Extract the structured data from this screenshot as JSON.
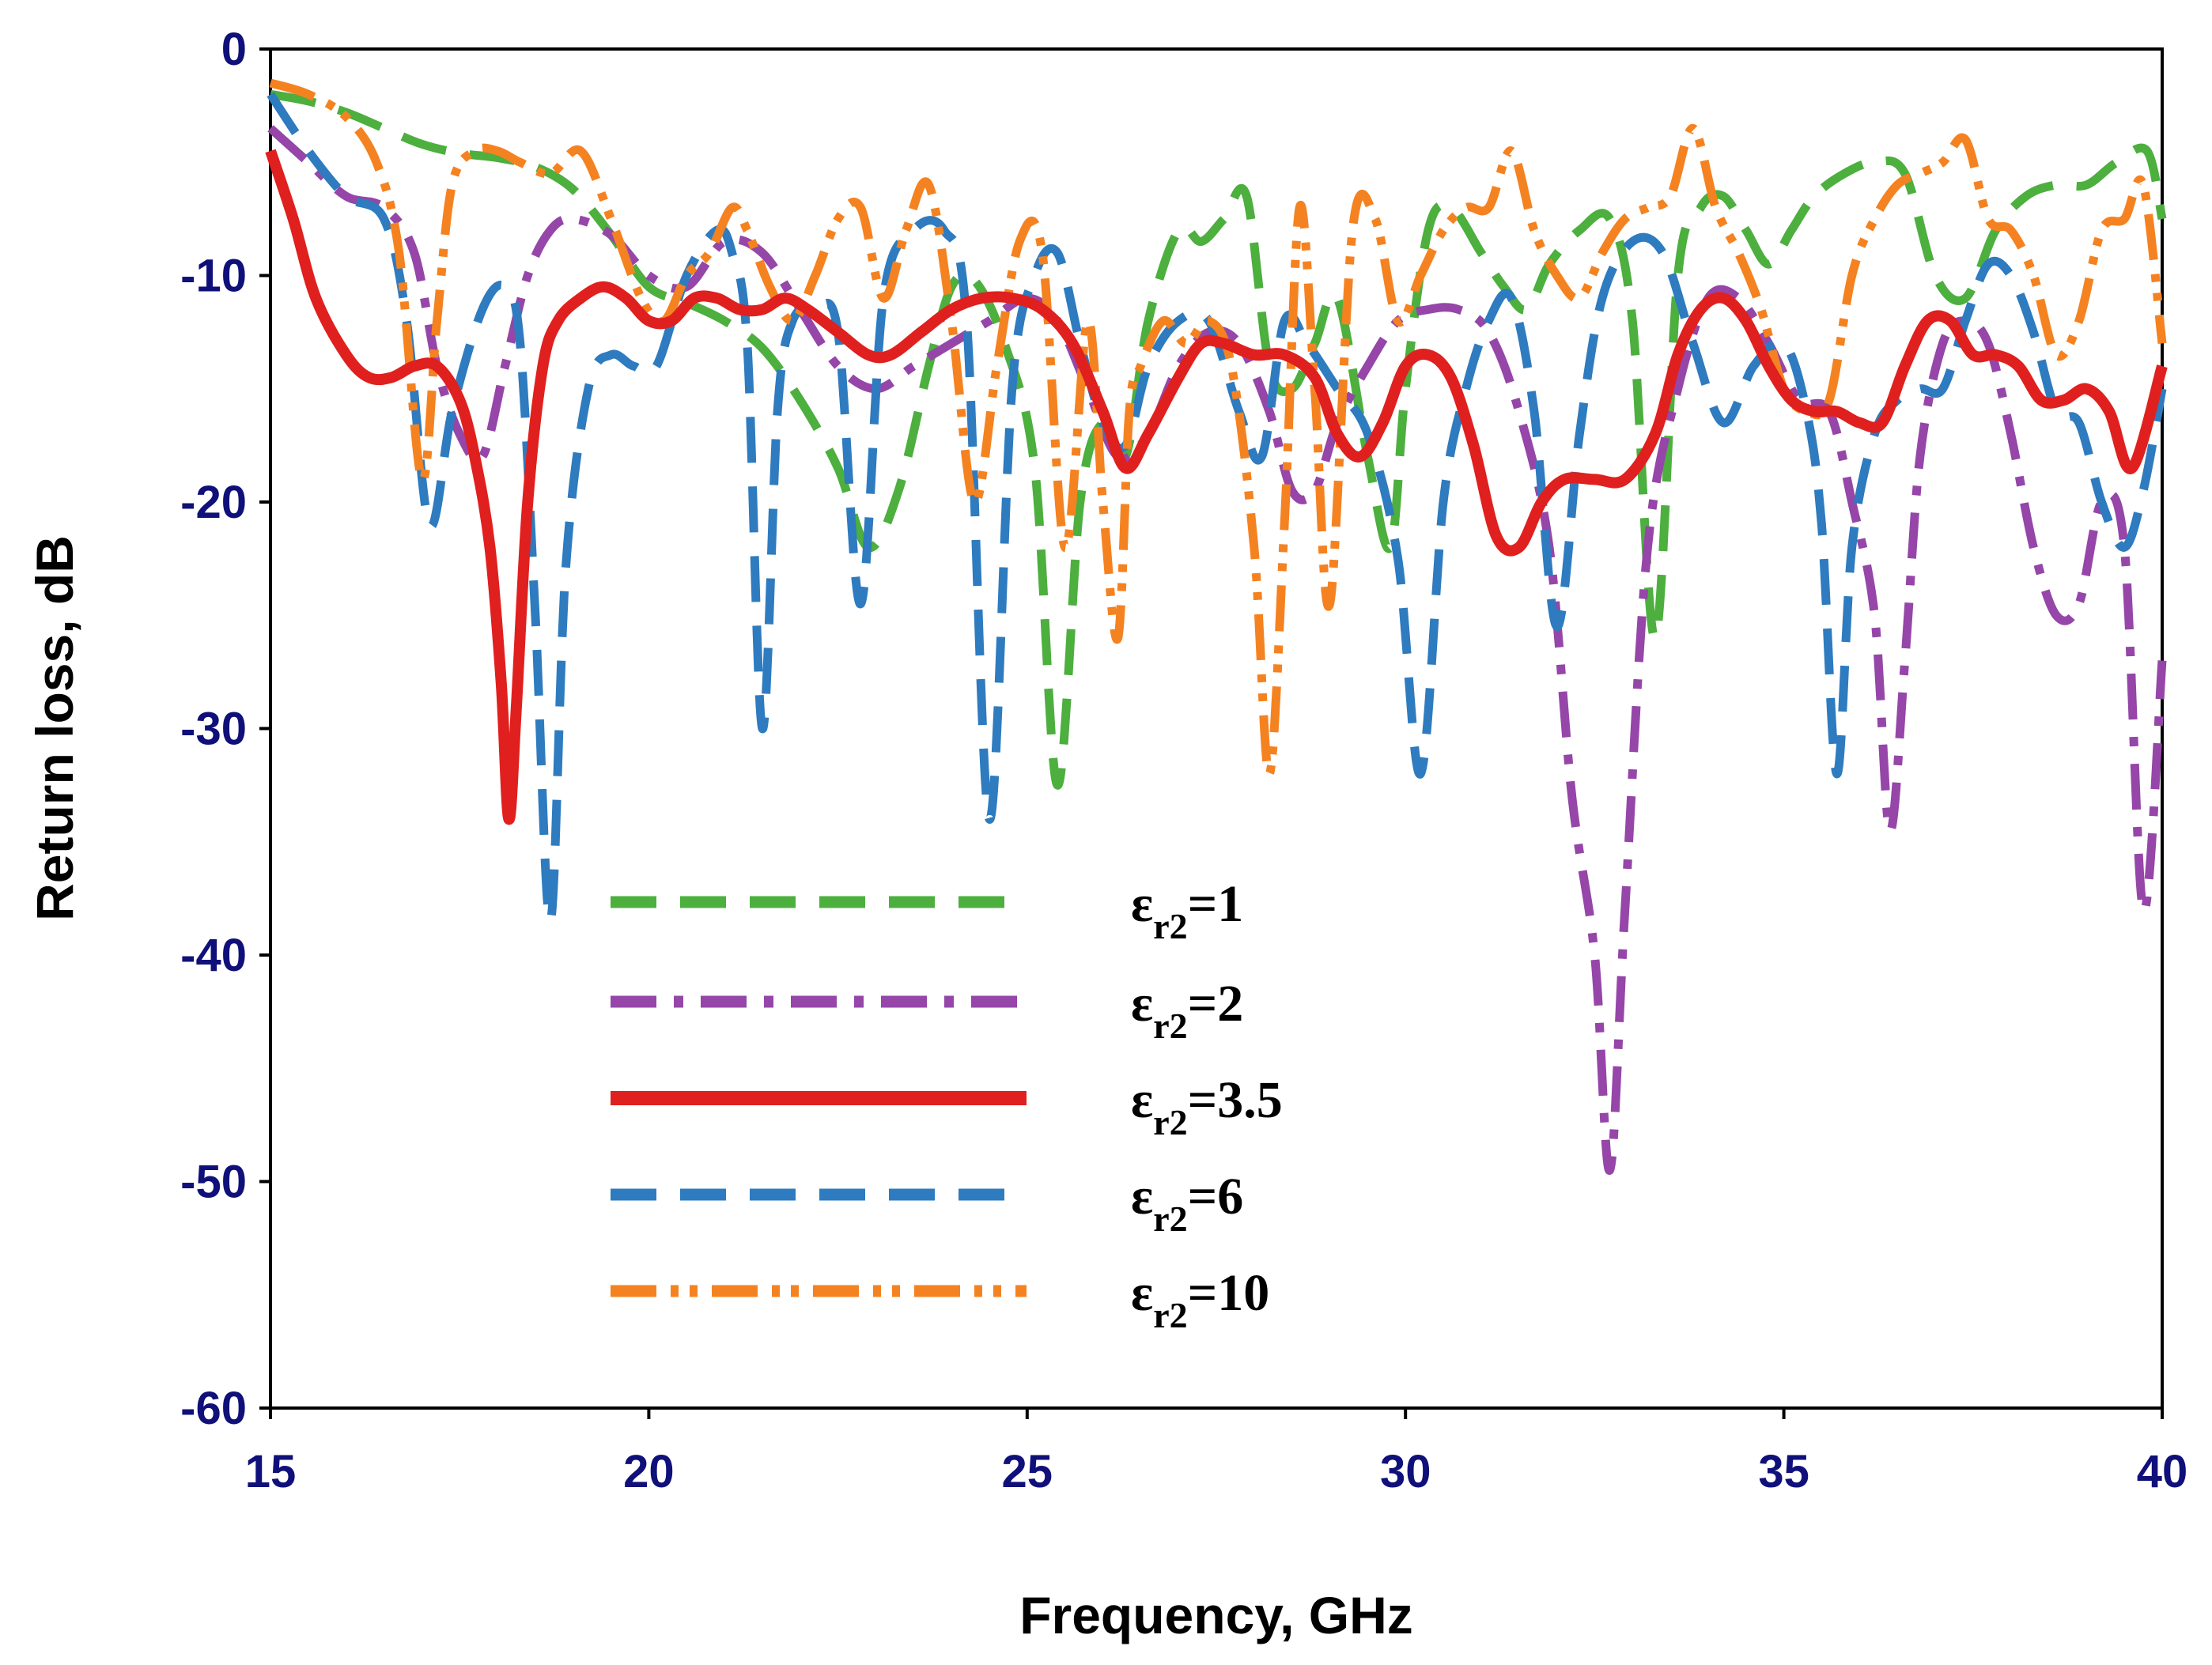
{
  "chart_data": {
    "type": "line",
    "title": "",
    "xlabel": "Frequency, GHz",
    "ylabel": "Return loss, dB",
    "xlim": [
      15,
      40
    ],
    "ylim": [
      -60,
      0
    ],
    "x_ticks": [
      "15",
      "20",
      "25",
      "30",
      "35",
      "40"
    ],
    "y_ticks": [
      "0",
      "-10",
      "-20",
      "-30",
      "-40",
      "-50",
      "-60"
    ],
    "grid": false,
    "legend_position": "center-left",
    "series": [
      {
        "name": "εr2=1",
        "label_main": "ε",
        "label_sub": "r2",
        "label_value": "=1",
        "color": "#4caf3e",
        "dash": "dash",
        "x": [
          15,
          15.5,
          16,
          16.5,
          17,
          17.5,
          18,
          18.5,
          19,
          19.5,
          20,
          20.5,
          21,
          21.5,
          22,
          22.5,
          22.9,
          23.3,
          23.7,
          24,
          24.3,
          24.7,
          25.1,
          25.4,
          25.7,
          26,
          26.3,
          26.6,
          27,
          27.3,
          27.6,
          27.9,
          28.2,
          28.5,
          28.8,
          29.1,
          29.5,
          29.8,
          30,
          30.3,
          30.6,
          31,
          31.3,
          31.6,
          31.9,
          32.3,
          32.7,
          33,
          33.3,
          33.6,
          33.9,
          34.2,
          34.5,
          34.8,
          35.1,
          35.4,
          35.8,
          36.2,
          36.6,
          37,
          37.4,
          37.8,
          38.2,
          38.6,
          39,
          39.4,
          39.8,
          40
        ],
        "y": [
          -2,
          -2.3,
          -2.8,
          -3.5,
          -4.2,
          -4.6,
          -4.8,
          -5.2,
          -6.2,
          -8.2,
          -10.5,
          -11.2,
          -12,
          -13.2,
          -15.5,
          -18.5,
          -22,
          -19.5,
          -14,
          -10.5,
          -10.2,
          -13,
          -18.5,
          -32.5,
          -20,
          -16.5,
          -18,
          -12,
          -8,
          -8.5,
          -7.5,
          -6.5,
          -14,
          -15,
          -13,
          -11,
          -18,
          -22,
          -15,
          -8,
          -7,
          -9,
          -10.5,
          -11.5,
          -9.5,
          -8,
          -7.5,
          -12,
          -26,
          -10,
          -7,
          -6.5,
          -8,
          -9.5,
          -8,
          -6.5,
          -5.5,
          -5,
          -5.5,
          -10,
          -11,
          -8,
          -6.5,
          -6,
          -6,
          -5,
          -4.5,
          -7.5
        ]
      },
      {
        "name": "εr2=2",
        "label_main": "ε",
        "label_sub": "r2",
        "label_value": "=2",
        "color": "#9546a8",
        "dash": "dash-dot",
        "x": [
          15,
          15.5,
          16,
          16.5,
          16.9,
          17.2,
          17.5,
          17.8,
          18.1,
          18.4,
          18.7,
          19,
          19.5,
          20,
          20.5,
          21,
          21.5,
          22,
          22.5,
          23,
          23.5,
          24,
          24.5,
          25,
          25.4,
          25.8,
          26.2,
          26.6,
          27,
          27.4,
          27.8,
          28.2,
          28.5,
          28.8,
          29.1,
          29.5,
          29.9,
          30.3,
          30.7,
          31.1,
          31.5,
          31.9,
          32.2,
          32.5,
          32.7,
          32.9,
          33.2,
          33.6,
          34,
          34.4,
          34.8,
          35.2,
          35.6,
          35.9,
          36.2,
          36.4,
          36.6,
          36.8,
          37.1,
          37.4,
          37.7,
          38,
          38.3,
          38.6,
          38.9,
          39.2,
          39.5,
          39.75,
          40
        ],
        "y": [
          -3.5,
          -5,
          -6.5,
          -7,
          -9,
          -14,
          -17,
          -18,
          -14,
          -10,
          -8,
          -7.5,
          -8.2,
          -10,
          -10.5,
          -8.5,
          -9,
          -11.5,
          -14,
          -15,
          -14,
          -13,
          -12,
          -11,
          -12,
          -15,
          -18,
          -17,
          -14,
          -12.5,
          -13,
          -16,
          -19.5,
          -19.5,
          -16.5,
          -14,
          -12,
          -11.5,
          -11.5,
          -12.5,
          -16,
          -22,
          -33,
          -40,
          -49.5,
          -38,
          -22,
          -15,
          -11,
          -11,
          -13,
          -15.5,
          -16,
          -20,
          -25,
          -34.5,
          -27,
          -18,
          -13,
          -12,
          -13,
          -17,
          -22,
          -25,
          -24.5,
          -20,
          -22,
          -38,
          -27
        ]
      },
      {
        "name": "εr2=3.5",
        "label_main": "ε",
        "label_sub": "r2",
        "label_value": "=3.5",
        "color": "#e0201e",
        "dash": "solid",
        "x": [
          15,
          15.3,
          15.6,
          16,
          16.3,
          16.6,
          16.9,
          17.2,
          17.5,
          17.7,
          17.9,
          18.05,
          18.15,
          18.25,
          18.4,
          18.6,
          18.8,
          19.1,
          19.4,
          19.7,
          20,
          20.3,
          20.6,
          20.9,
          21.2,
          21.5,
          21.8,
          22.1,
          22.5,
          22.9,
          23.2,
          23.6,
          24,
          24.4,
          24.8,
          25.2,
          25.6,
          26,
          26.3,
          26.6,
          27,
          27.3,
          27.6,
          28,
          28.4,
          28.8,
          29.1,
          29.4,
          29.7,
          30,
          30.3,
          30.6,
          30.9,
          31.2,
          31.5,
          31.8,
          32.1,
          32.5,
          32.9,
          33.3,
          33.6,
          33.9,
          34.2,
          34.5,
          34.8,
          35.1,
          35.4,
          35.7,
          36,
          36.3,
          36.6,
          36.9,
          37.2,
          37.5,
          37.8,
          38.1,
          38.4,
          38.7,
          39,
          39.3,
          39.6,
          40
        ],
        "y": [
          -4.5,
          -7.5,
          -11,
          -13.5,
          -14.5,
          -14.5,
          -14,
          -14,
          -15.5,
          -18,
          -22,
          -28,
          -34,
          -29,
          -20,
          -14,
          -12,
          -11,
          -10.5,
          -11,
          -12,
          -12,
          -11,
          -11,
          -11.5,
          -11.5,
          -11,
          -11.5,
          -12.5,
          -13.5,
          -13.5,
          -12.5,
          -11.5,
          -11,
          -11,
          -11.5,
          -13,
          -16,
          -18.5,
          -17,
          -14.5,
          -13,
          -13,
          -13.5,
          -13.5,
          -14.5,
          -17,
          -18,
          -16.5,
          -14,
          -13.5,
          -14.5,
          -17.5,
          -21.5,
          -22,
          -20,
          -19,
          -19,
          -19,
          -17,
          -13.5,
          -11.5,
          -11,
          -12,
          -14,
          -15.5,
          -16,
          -16,
          -16.5,
          -16.5,
          -14,
          -12,
          -12,
          -13.5,
          -13.5,
          -14,
          -15.5,
          -15.5,
          -15,
          -16,
          -18.5,
          -14
        ]
      },
      {
        "name": "εr2=6",
        "label_main": "ε",
        "label_sub": "r2",
        "label_value": "=6",
        "color": "#2e7bbf",
        "dash": "dash",
        "x": [
          15,
          15.5,
          16,
          16.5,
          16.8,
          17.1,
          17.4,
          17.8,
          18.1,
          18.3,
          18.5,
          18.7,
          18.9,
          19.2,
          19.5,
          19.8,
          20.1,
          20.5,
          20.9,
          21.1,
          21.3,
          21.5,
          21.7,
          21.9,
          22.2,
          22.5,
          22.8,
          23.1,
          23.5,
          23.9,
          24.2,
          24.5,
          24.8,
          25.1,
          25.4,
          25.7,
          26,
          26.3,
          26.6,
          27,
          27.4,
          27.8,
          28.1,
          28.4,
          28.7,
          29.1,
          29.5,
          29.9,
          30.2,
          30.5,
          30.8,
          31.1,
          31.4,
          31.7,
          32,
          32.3,
          32.6,
          33,
          33.4,
          33.8,
          34.2,
          34.6,
          35,
          35.3,
          35.5,
          35.7,
          35.9,
          36.2,
          36.5,
          36.8,
          37.1,
          37.4,
          37.7,
          38,
          38.3,
          38.6,
          38.9,
          39.2,
          39.5,
          39.75,
          40
        ],
        "y": [
          -2,
          -4.5,
          -6.5,
          -7.5,
          -12,
          -21,
          -16,
          -11.5,
          -10.5,
          -13,
          -25,
          -38.5,
          -23,
          -15,
          -13.5,
          -14,
          -14,
          -10,
          -8,
          -9,
          -13,
          -30,
          -16,
          -12,
          -11.5,
          -12.5,
          -24.5,
          -11,
          -8,
          -8,
          -12,
          -34,
          -15,
          -10,
          -9,
          -13,
          -16.5,
          -17.5,
          -14,
          -12,
          -12,
          -16,
          -18,
          -12,
          -13,
          -15,
          -17,
          -22.5,
          -32,
          -20,
          -15,
          -12,
          -11,
          -16,
          -25.5,
          -17,
          -11,
          -8.5,
          -9,
          -13,
          -16.5,
          -14,
          -13,
          -16,
          -21,
          -32,
          -22,
          -17,
          -15.5,
          -15,
          -15,
          -12,
          -9.5,
          -10,
          -12.5,
          -16,
          -16.5,
          -20,
          -22,
          -19.5,
          -15
        ]
      },
      {
        "name": "εr2=10",
        "label_main": "ε",
        "label_sub": "r2",
        "label_value": "=10",
        "color": "#f58220",
        "dash": "dash-dot-dot",
        "x": [
          15,
          15.5,
          16,
          16.4,
          16.7,
          17,
          17.2,
          17.4,
          17.7,
          18,
          18.3,
          18.7,
          19.1,
          19.5,
          19.9,
          20.2,
          20.5,
          20.8,
          21.1,
          21.3,
          21.6,
          21.9,
          22.2,
          22.5,
          22.8,
          23.1,
          23.4,
          23.7,
          24,
          24.3,
          24.6,
          24.9,
          25.2,
          25.5,
          25.8,
          26,
          26.2,
          26.35,
          26.5,
          26.8,
          27.1,
          27.4,
          27.7,
          28,
          28.2,
          28.4,
          28.6,
          28.8,
          29,
          29.3,
          29.6,
          29.9,
          30.2,
          30.5,
          30.8,
          31.1,
          31.4,
          31.7,
          32,
          32.3,
          32.6,
          32.9,
          33.2,
          33.5,
          33.8,
          34.1,
          34.4,
          34.7,
          35,
          35.3,
          35.6,
          35.9,
          36.2,
          36.5,
          36.8,
          37.1,
          37.4,
          37.7,
          38,
          38.3,
          38.6,
          38.9,
          39.2,
          39.5,
          39.75,
          40
        ],
        "y": [
          -1.5,
          -2,
          -3,
          -5,
          -9,
          -19,
          -12,
          -6,
          -4.5,
          -4.5,
          -5,
          -5.5,
          -4.5,
          -7.5,
          -11,
          -12,
          -10,
          -9,
          -7,
          -8,
          -10.5,
          -12,
          -10,
          -7.5,
          -7,
          -11,
          -8,
          -6,
          -12,
          -20,
          -14,
          -8.5,
          -9,
          -22,
          -12,
          -20,
          -26,
          -16,
          -14,
          -12,
          -13,
          -12,
          -14,
          -22,
          -32,
          -21,
          -7,
          -15,
          -24.5,
          -8,
          -7.5,
          -12,
          -10,
          -8,
          -7,
          -7,
          -4.5,
          -8,
          -10,
          -11,
          -9,
          -7.5,
          -7,
          -6.5,
          -3.5,
          -7,
          -9,
          -11.5,
          -15,
          -16,
          -15.5,
          -10,
          -7.5,
          -6,
          -5.5,
          -5,
          -4,
          -7.5,
          -8,
          -10,
          -13.5,
          -12,
          -8,
          -7.5,
          -6,
          -13
        ]
      }
    ]
  }
}
